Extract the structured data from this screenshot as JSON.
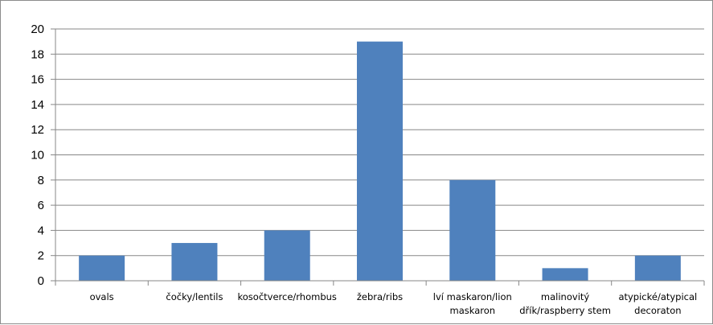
{
  "chart_data": {
    "type": "bar",
    "title": "",
    "xlabel": "",
    "ylabel": "",
    "ylim": [
      0,
      20
    ],
    "yticks": [
      0,
      2,
      4,
      6,
      8,
      10,
      12,
      14,
      16,
      18,
      20
    ],
    "grid": true,
    "legend": "none",
    "categories": [
      [
        "ovals"
      ],
      [
        "čočky/lentils"
      ],
      [
        "kosočtverce/rhombus"
      ],
      [
        "žebra/ribs"
      ],
      [
        "lví maskaron/lion",
        "maskaron"
      ],
      [
        "malinovitý",
        "dřík/raspberry stem"
      ],
      [
        "atypické/atypical",
        "decoraton"
      ]
    ],
    "values": [
      2,
      3,
      4,
      19,
      8,
      1,
      2
    ],
    "colors": {
      "bar": "#4f81bd",
      "grid": "#878787",
      "axis": "#878787"
    }
  }
}
